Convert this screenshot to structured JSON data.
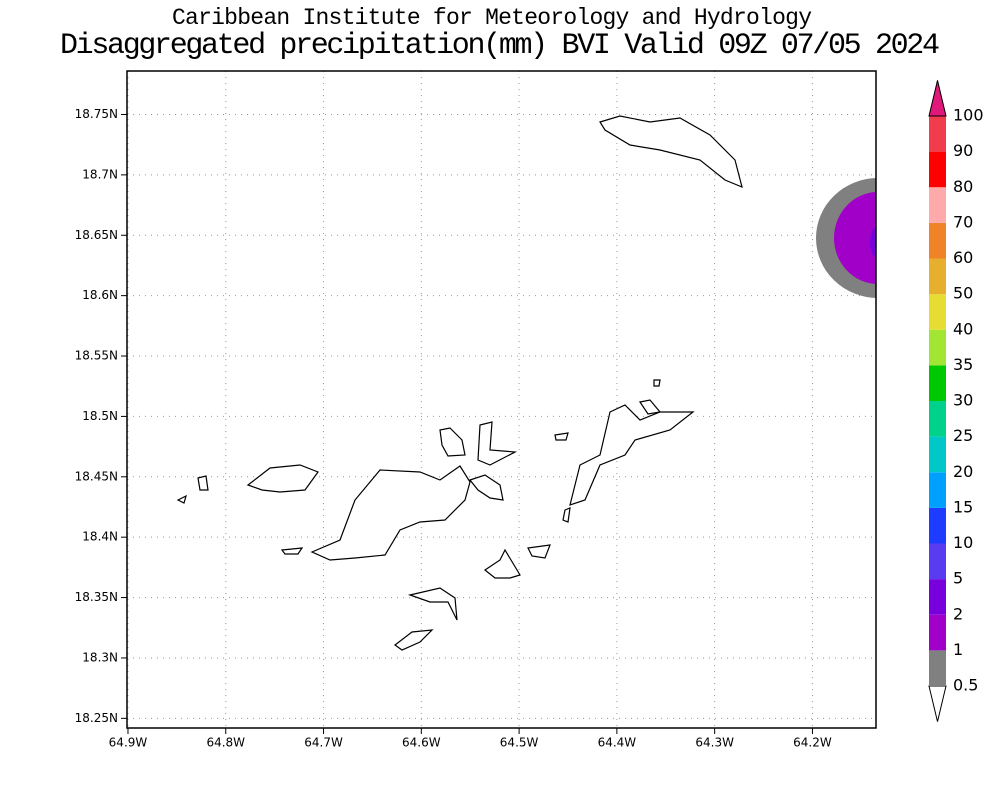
{
  "header": {
    "title": "Caribbean Institute for Meteorology and Hydrology",
    "subtitle": "Disaggregated precipitation(mm) BVI Valid 09Z 07/05 2024"
  },
  "map": {
    "xlim": [
      -64.901,
      -64.135
    ],
    "ylim": [
      18.242,
      18.786
    ],
    "xticks": [
      {
        "value": -64.9,
        "label": "64.9W"
      },
      {
        "value": -64.8,
        "label": "64.8W"
      },
      {
        "value": -64.7,
        "label": "64.7W"
      },
      {
        "value": -64.6,
        "label": "64.6W"
      },
      {
        "value": -64.5,
        "label": "64.5W"
      },
      {
        "value": -64.4,
        "label": "64.4W"
      },
      {
        "value": -64.3,
        "label": "64.3W"
      },
      {
        "value": -64.2,
        "label": "64.2W"
      }
    ],
    "yticks": [
      {
        "value": 18.25,
        "label": "18.25N"
      },
      {
        "value": 18.3,
        "label": "18.3N"
      },
      {
        "value": 18.35,
        "label": "18.35N"
      },
      {
        "value": 18.4,
        "label": "18.4N"
      },
      {
        "value": 18.45,
        "label": "18.45N"
      },
      {
        "value": 18.5,
        "label": "18.5N"
      },
      {
        "value": 18.55,
        "label": "18.55N"
      },
      {
        "value": 18.6,
        "label": "18.6N"
      },
      {
        "value": 18.65,
        "label": "18.65N"
      },
      {
        "value": 18.7,
        "label": "18.7N"
      },
      {
        "value": 18.75,
        "label": "18.75N"
      }
    ],
    "grid": true,
    "colorbar": {
      "levels": [
        0.5,
        1,
        2,
        5,
        10,
        15,
        20,
        25,
        30,
        35,
        40,
        50,
        60,
        70,
        80,
        90,
        100
      ],
      "colors": [
        "#ffffff",
        "#808080",
        "#a000c8",
        "#7800dc",
        "#5a3cf0",
        "#1e3cff",
        "#00a0ff",
        "#00c8c8",
        "#00d28c",
        "#00c800",
        "#a0e632",
        "#e6dc32",
        "#e6af2d",
        "#f08228",
        "#ffaaaa",
        "#ff0000",
        "#f03c4c",
        "#e0187a"
      ]
    }
  }
}
